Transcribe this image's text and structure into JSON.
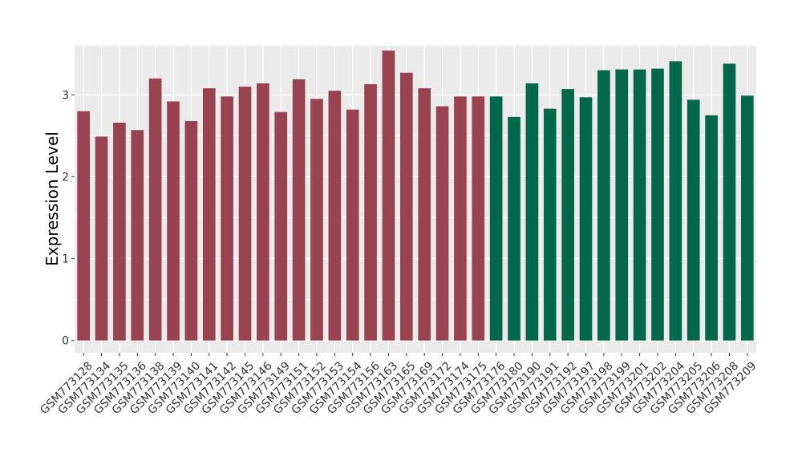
{
  "chart_data": {
    "type": "bar",
    "title": "",
    "xlabel": "",
    "ylabel": "Expression Level",
    "ylim": [
      -0.15,
      3.6
    ],
    "yticks": [
      0,
      1,
      2,
      3
    ],
    "grid": true,
    "legend": "none",
    "categories": [
      "GSM773128",
      "GSM773134",
      "GSM773135",
      "GSM773136",
      "GSM773138",
      "GSM773139",
      "GSM773140",
      "GSM773141",
      "GSM773142",
      "GSM773145",
      "GSM773146",
      "GSM773149",
      "GSM773151",
      "GSM773152",
      "GSM773153",
      "GSM773154",
      "GSM773156",
      "GSM773163",
      "GSM773165",
      "GSM773169",
      "GSM773172",
      "GSM773174",
      "GSM773175",
      "GSM773176",
      "GSM773180",
      "GSM773190",
      "GSM773191",
      "GSM773192",
      "GSM773197",
      "GSM773198",
      "GSM773199",
      "GSM773201",
      "GSM773202",
      "GSM773204",
      "GSM773205",
      "GSM773206",
      "GSM773208",
      "GSM773209"
    ],
    "values": [
      2.8,
      2.49,
      2.66,
      2.57,
      3.2,
      2.92,
      2.68,
      3.08,
      2.98,
      3.1,
      3.14,
      2.79,
      3.19,
      2.95,
      3.05,
      2.82,
      3.13,
      3.54,
      3.27,
      3.08,
      2.86,
      2.98,
      2.98,
      2.98,
      2.73,
      3.14,
      2.83,
      3.07,
      2.97,
      3.3,
      3.31,
      3.31,
      3.32,
      3.41,
      2.94,
      2.75,
      3.38,
      2.99
    ],
    "groups": [
      {
        "color": "#9a4350",
        "count": 23
      },
      {
        "color": "#03684a",
        "count": 15
      }
    ],
    "panel_background": "#ebebeb",
    "grid_color": "#ffffff"
  }
}
